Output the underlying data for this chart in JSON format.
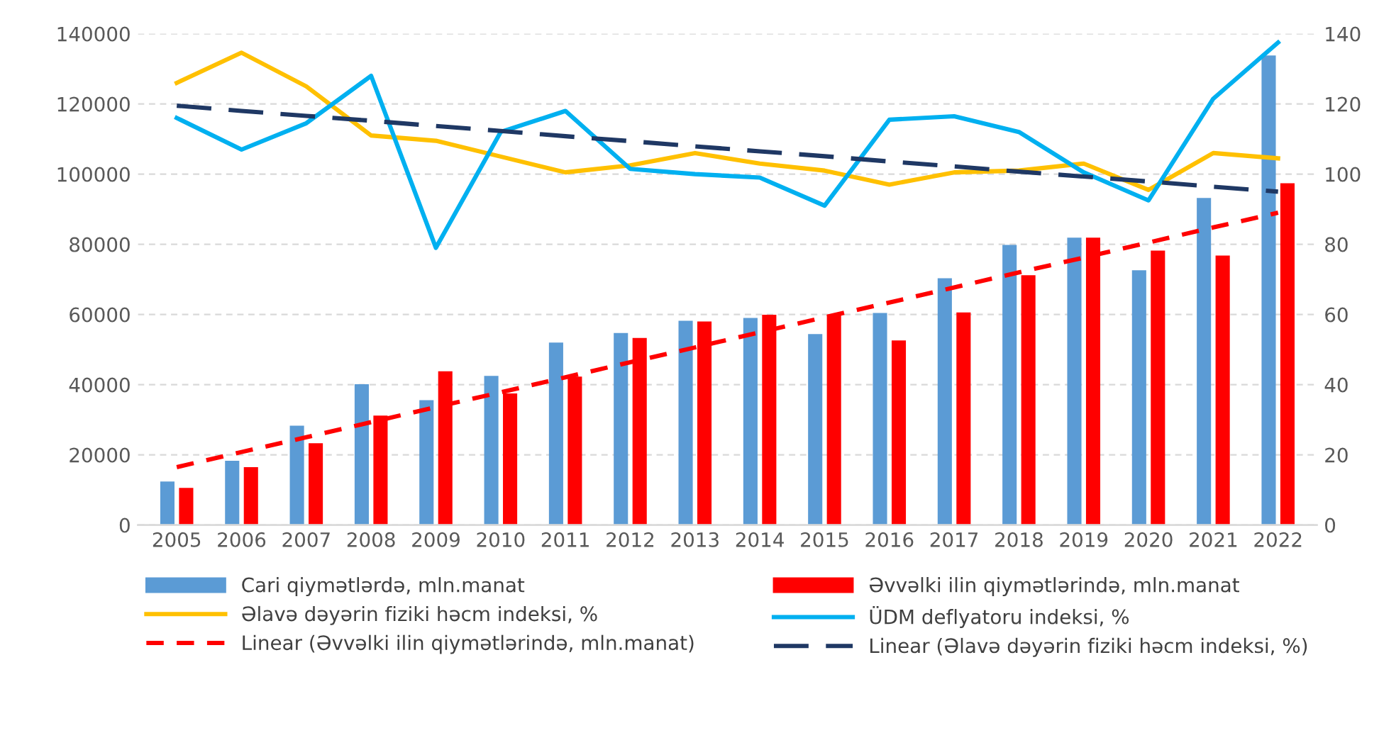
{
  "chart_data": {
    "type": "bar",
    "categories": [
      "2005",
      "2006",
      "2007",
      "2008",
      "2009",
      "2010",
      "2011",
      "2012",
      "2013",
      "2014",
      "2015",
      "2016",
      "2017",
      "2018",
      "2019",
      "2020",
      "2021",
      "2022"
    ],
    "ylim": [
      0,
      140000
    ],
    "yticks": [
      0,
      20000,
      40000,
      60000,
      80000,
      100000,
      120000,
      140000
    ],
    "y2lim": [
      0,
      140
    ],
    "y2ticks": [
      0,
      20,
      40,
      60,
      80,
      100,
      120,
      140
    ],
    "grid": "y",
    "legend": "bottom",
    "series": [
      {
        "name": "Cari qiymətlərdə, mln.manat",
        "color": "#5b9bd5",
        "values": [
          12400,
          18300,
          28300,
          40100,
          35600,
          42500,
          52000,
          54700,
          58200,
          59000,
          54400,
          60400,
          70300,
          79800,
          81900,
          72600,
          93200,
          133800
        ]
      },
      {
        "name": "Əvvəlki ilin qiymətlərində, mln.manat",
        "color": "#ff0000",
        "values": [
          10600,
          16500,
          23300,
          31200,
          43800,
          37500,
          42300,
          53300,
          58000,
          59900,
          59800,
          52600,
          60600,
          71200,
          81900,
          78200,
          76800,
          97400
        ]
      },
      {
        "name": "Əlavə dəyərin fiziki həcm indeksi, %",
        "type": "line",
        "axis": "y2",
        "color": "#ffc000",
        "line_style": "solid",
        "values": [
          126,
          134.6,
          125,
          111,
          109.5,
          105,
          100.5,
          102.5,
          106,
          103,
          101,
          97,
          100.5,
          101,
          103,
          95.5,
          106,
          104.5
        ]
      },
      {
        "name": "ÜDM deflyatoru indeksi, %",
        "type": "line",
        "axis": "y2",
        "color": "#00b0f0",
        "line_style": "solid",
        "values": [
          116,
          107,
          114.5,
          128,
          79,
          112,
          118,
          101.5,
          100,
          99,
          91,
          115.5,
          116.5,
          112,
          100.5,
          92.5,
          121.5,
          137.5
        ]
      },
      {
        "name": "Linear (Əvvəlki ilin qiymətlərində, mln.manat)",
        "type": "line",
        "color": "#ff0000",
        "line_style": "dotted",
        "values": [
          16500,
          20800,
          25000,
          29300,
          33600,
          37800,
          42100,
          46400,
          50600,
          54900,
          59200,
          63400,
          67700,
          72000,
          76200,
          80500,
          84800,
          89000
        ]
      },
      {
        "name": "Linear (Əlavə dəyərin fiziki həcm indeksi, %)",
        "type": "line",
        "axis": "y2",
        "color": "#1f3864",
        "line_style": "dashed",
        "values": [
          119.5,
          118,
          116.6,
          115.2,
          113.7,
          112.3,
          110.8,
          109.4,
          107.9,
          106.5,
          105.1,
          103.6,
          102.2,
          100.7,
          99.3,
          97.9,
          96.4,
          95
        ]
      }
    ]
  }
}
